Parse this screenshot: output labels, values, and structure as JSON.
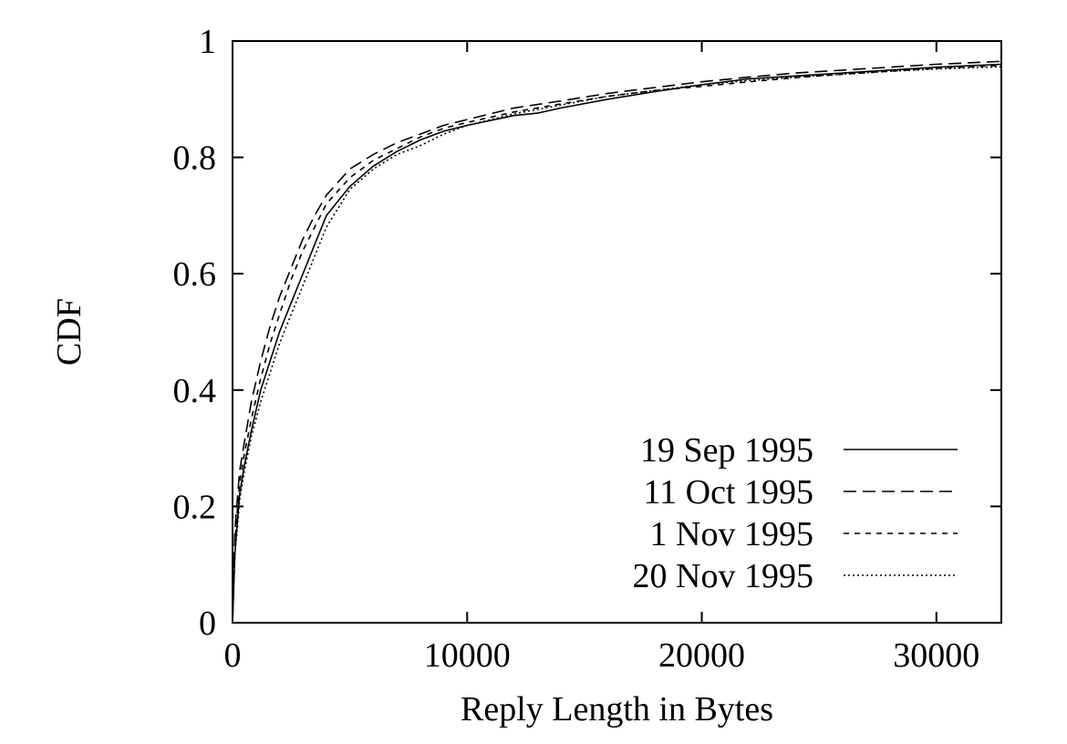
{
  "chart_data": {
    "type": "line",
    "title": "",
    "xlabel": "Reply Length in Bytes",
    "ylabel": "CDF",
    "xlim": [
      0,
      32768
    ],
    "ylim": [
      0,
      1
    ],
    "x_ticks": [
      0,
      10000,
      20000,
      30000
    ],
    "x_tick_labels": [
      "0",
      "10000",
      "20000",
      "30000"
    ],
    "y_ticks": [
      0,
      0.2,
      0.4,
      0.6,
      0.8,
      1
    ],
    "y_tick_labels": [
      "0",
      "0.2",
      "0.4",
      "0.6",
      "0.8",
      "1"
    ],
    "grid": false,
    "legend_position": "bottom-right",
    "series": [
      {
        "name": "19 Sep 1995",
        "dash": "solid",
        "x": [
          0,
          100,
          200,
          300,
          500,
          800,
          1200,
          1600,
          2000,
          2500,
          3000,
          3500,
          4000,
          5000,
          6000,
          7000,
          8000,
          9000,
          10000,
          12000,
          13000,
          14000,
          16000,
          18000,
          20000,
          22000,
          24000,
          26000,
          28000,
          30000,
          32768
        ],
        "y": [
          0,
          0.12,
          0.17,
          0.22,
          0.27,
          0.33,
          0.4,
          0.45,
          0.5,
          0.55,
          0.6,
          0.65,
          0.7,
          0.75,
          0.785,
          0.81,
          0.83,
          0.845,
          0.855,
          0.872,
          0.876,
          0.885,
          0.9,
          0.913,
          0.925,
          0.935,
          0.94,
          0.945,
          0.95,
          0.955,
          0.96
        ]
      },
      {
        "name": "11 Oct 1995",
        "dash": "long-dash",
        "x": [
          0,
          100,
          200,
          300,
          500,
          800,
          1200,
          1600,
          2000,
          2500,
          3000,
          3500,
          4000,
          5000,
          6000,
          7000,
          8000,
          9000,
          10000,
          12000,
          14000,
          16000,
          18000,
          20000,
          22000,
          24000,
          26000,
          28000,
          30000,
          32768
        ],
        "y": [
          0,
          0.16,
          0.21,
          0.26,
          0.31,
          0.38,
          0.45,
          0.51,
          0.56,
          0.61,
          0.66,
          0.7,
          0.735,
          0.78,
          0.805,
          0.825,
          0.84,
          0.855,
          0.865,
          0.885,
          0.897,
          0.91,
          0.92,
          0.93,
          0.938,
          0.945,
          0.95,
          0.955,
          0.96,
          0.965
        ]
      },
      {
        "name": "1 Nov 1995",
        "dash": "short-dash",
        "x": [
          0,
          100,
          200,
          300,
          500,
          800,
          1200,
          1600,
          2000,
          2500,
          3000,
          3500,
          4000,
          5000,
          6000,
          7000,
          8000,
          9000,
          10000,
          12000,
          14000,
          16000,
          18000,
          20000,
          22000,
          24000,
          26000,
          28000,
          30000,
          32768
        ],
        "y": [
          0,
          0.14,
          0.19,
          0.24,
          0.29,
          0.35,
          0.42,
          0.48,
          0.53,
          0.59,
          0.64,
          0.68,
          0.72,
          0.765,
          0.795,
          0.815,
          0.835,
          0.85,
          0.86,
          0.878,
          0.892,
          0.905,
          0.915,
          0.922,
          0.93,
          0.937,
          0.943,
          0.948,
          0.953,
          0.958
        ]
      },
      {
        "name": "20 Nov 1995",
        "dash": "dotted",
        "x": [
          0,
          100,
          200,
          300,
          500,
          800,
          1200,
          1600,
          2000,
          2500,
          3000,
          3500,
          4000,
          5000,
          6000,
          7000,
          8000,
          9000,
          10000,
          12000,
          14000,
          16000,
          18000,
          20000,
          22000,
          24000,
          26000,
          28000,
          30000,
          32768
        ],
        "y": [
          0,
          0.12,
          0.16,
          0.21,
          0.26,
          0.32,
          0.38,
          0.43,
          0.48,
          0.53,
          0.58,
          0.63,
          0.68,
          0.745,
          0.78,
          0.805,
          0.82,
          0.84,
          0.855,
          0.875,
          0.89,
          0.905,
          0.915,
          0.925,
          0.932,
          0.938,
          0.943,
          0.948,
          0.952,
          0.956
        ]
      }
    ]
  }
}
